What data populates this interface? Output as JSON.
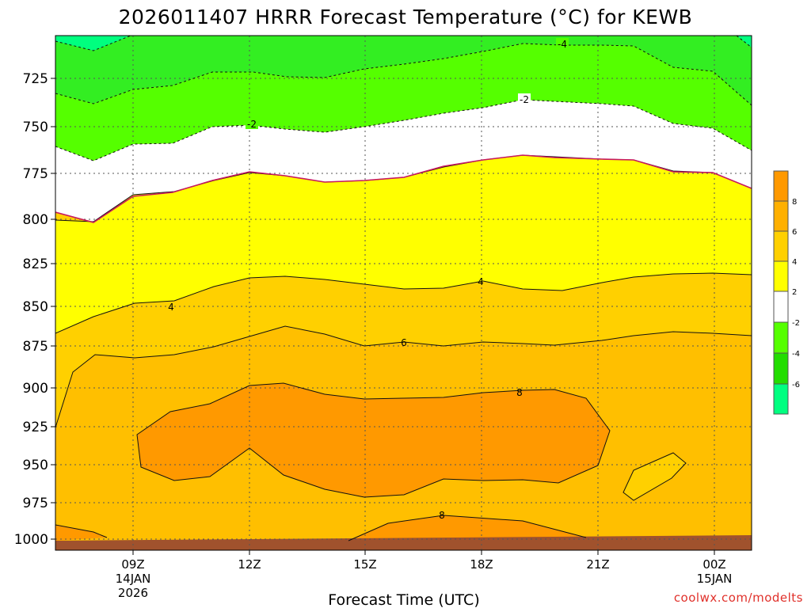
{
  "chart_data": {
    "type": "contour",
    "title": "2026011407 HRRR Forecast Temperature (°C) for KEWB",
    "xlabel": "Forecast Time (UTC)",
    "ylabel": "",
    "credit": "coolwx.com/modelts",
    "y_ticks": [
      "725",
      "750",
      "775",
      "800",
      "825",
      "850",
      "875",
      "900",
      "925",
      "950",
      "975",
      "1000"
    ],
    "x_ticks": [
      {
        "label": "09Z",
        "sub": [
          "14JAN",
          "2026"
        ]
      },
      {
        "label": "12Z",
        "sub": []
      },
      {
        "label": "15Z",
        "sub": []
      },
      {
        "label": "18Z",
        "sub": []
      },
      {
        "label": "21Z",
        "sub": []
      },
      {
        "label": "00Z",
        "sub": [
          "15JAN"
        ]
      }
    ],
    "contour_labels": [
      "-4",
      "-2",
      "4",
      "4",
      "6",
      "8",
      "8"
    ],
    "colorbar": {
      "labels": [
        "8",
        "6",
        "4",
        "2",
        "-2",
        "-4",
        "-6"
      ],
      "colors": [
        "#ff9900",
        "#ffb000",
        "#ffd000",
        "#ffff00",
        "#ffffff",
        "#55ff00",
        "#22dd00",
        "#00ff80"
      ]
    },
    "fill_colors": {
      "cold": "#00ff7f",
      "minus4": "#33ee22",
      "minus2": "#55ff00",
      "zero_band": "#ffffff",
      "plus2": "#ffff00",
      "plus4": "#ffd000",
      "plus6": "#ffbf00",
      "plus8": "#ff9900",
      "ground": "#a0522d"
    }
  }
}
